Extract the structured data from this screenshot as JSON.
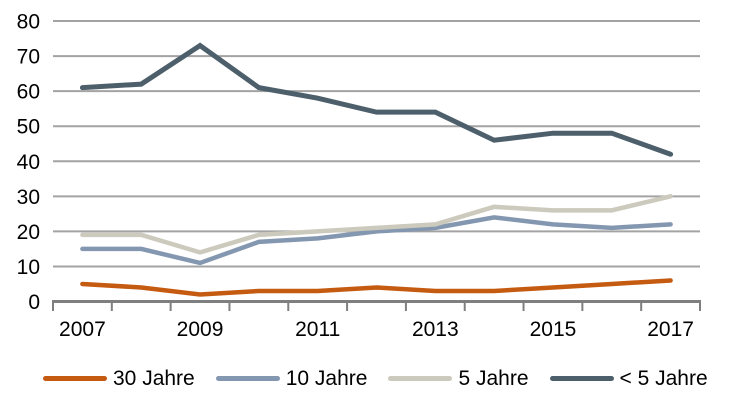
{
  "chart_data": {
    "type": "line",
    "title": "",
    "xlabel": "",
    "ylabel": "",
    "categories": [
      "2007",
      "2008",
      "2009",
      "2010",
      "2011",
      "2012",
      "2013",
      "2014",
      "2015",
      "2016",
      "2017"
    ],
    "series": [
      {
        "name": "30 Jahre",
        "color": "#C55A11",
        "stroke_width": 4.5,
        "values": [
          5,
          4,
          2,
          3,
          3,
          4,
          3,
          3,
          4,
          5,
          6
        ]
      },
      {
        "name": "10 Jahre",
        "color": "#8497B0",
        "stroke_width": 4.5,
        "values": [
          15,
          15,
          11,
          17,
          18,
          20,
          21,
          24,
          22,
          21,
          22
        ]
      },
      {
        "name": "5 Jahre",
        "color": "#CCC9BD",
        "stroke_width": 4.5,
        "values": [
          19,
          19,
          14,
          19,
          20,
          21,
          22,
          27,
          26,
          26,
          30
        ]
      },
      {
        "name": "< 5 Jahre",
        "color": "#4D5F6B",
        "stroke_width": 5,
        "values": [
          61,
          62,
          73,
          61,
          58,
          54,
          54,
          46,
          48,
          48,
          42
        ]
      }
    ],
    "ylim": [
      0,
      80
    ],
    "ytick_step": 10,
    "ytick_labels": [
      "0",
      "10",
      "20",
      "30",
      "40",
      "50",
      "60",
      "70",
      "80"
    ],
    "xtick_labels_shown": [
      "2007",
      "2009",
      "2011",
      "2013",
      "2015",
      "2017"
    ],
    "grid": true,
    "legend_position": "bottom",
    "colors": {
      "gridline": "#A3A3A3",
      "axis": "#7F7F7F",
      "label": "#000000",
      "background": "#FFFFFF"
    }
  }
}
